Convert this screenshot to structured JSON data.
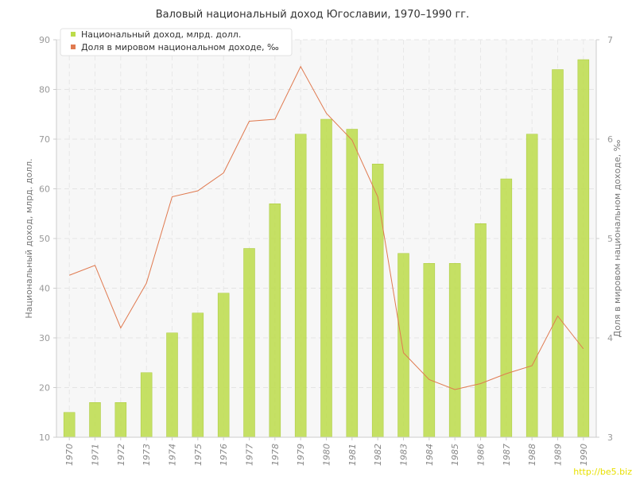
{
  "chart_data": {
    "type": "bar+line",
    "title": "Валовый национальный доход Югославии, 1970–1990 гг.",
    "categories": [
      "1970",
      "1971",
      "1972",
      "1973",
      "1974",
      "1975",
      "1976",
      "1977",
      "1978",
      "1979",
      "1980",
      "1981",
      "1982",
      "1983",
      "1984",
      "1985",
      "1986",
      "1987",
      "1988",
      "1989",
      "1990"
    ],
    "series": [
      {
        "name": "Национальный доход, млрд. долл.",
        "type": "bar",
        "axis": "left",
        "color": "#bcdc4a",
        "values": [
          15,
          17,
          17,
          23,
          31,
          35,
          39,
          48,
          57,
          71,
          74,
          72,
          65,
          47,
          45,
          45,
          53,
          62,
          71,
          84,
          86
        ]
      },
      {
        "name": "Доля в мировом национальном доходе, ‰",
        "type": "line",
        "axis": "right",
        "color": "#e07a50",
        "values": [
          4.63,
          4.73,
          4.1,
          4.55,
          5.42,
          5.48,
          5.66,
          6.18,
          6.2,
          6.73,
          6.26,
          5.99,
          5.42,
          3.85,
          3.58,
          3.48,
          3.54,
          3.64,
          3.72,
          4.22,
          3.89
        ]
      }
    ],
    "ylabel": "Национальный доход, млрд. долл.",
    "ylabel_right": "Доля в мировом национальном доходе, ‰",
    "ylim": [
      10,
      90
    ],
    "yticks": [
      "10",
      "20",
      "30",
      "40",
      "50",
      "60",
      "70",
      "80",
      "90"
    ],
    "ylim_right": [
      3,
      7
    ],
    "yticks_right": [
      "3",
      "4",
      "5",
      "6",
      "7"
    ],
    "grid": true,
    "legend_position": "top-left"
  },
  "watermark": "http://be5.biz"
}
